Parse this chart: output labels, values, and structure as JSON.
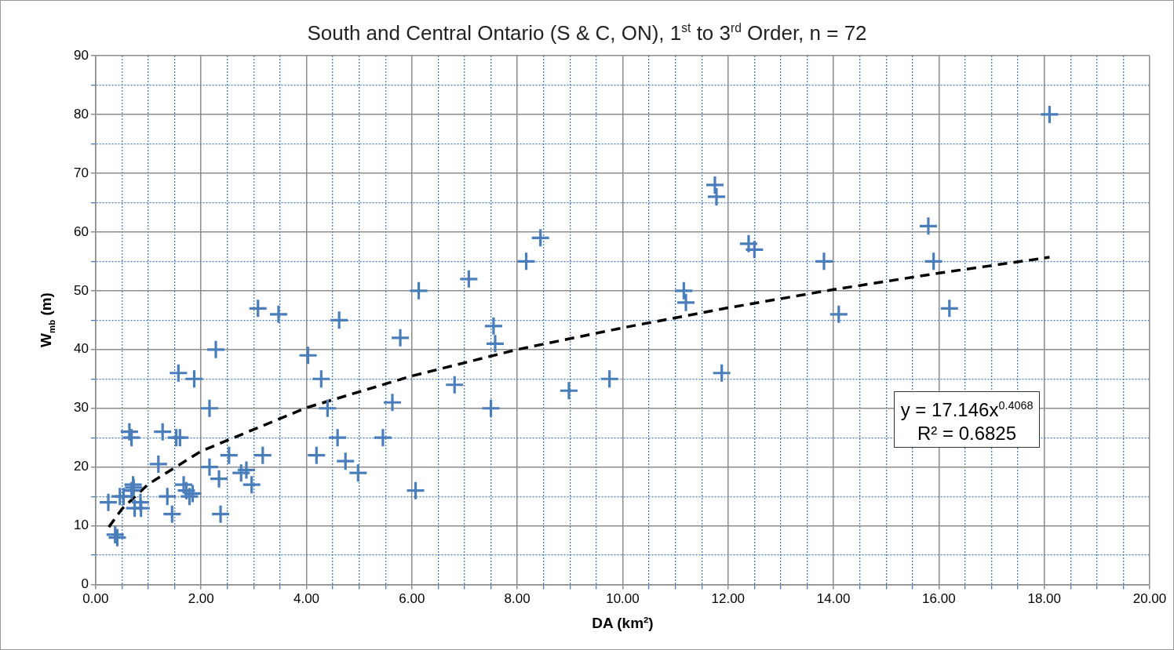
{
  "chart_data": {
    "type": "scatter",
    "title": "South and Central Ontario (S & C, ON), 1$^{st}$ to 3$^{rd}$ Order, n = 72",
    "xlabel": "DA (km²)",
    "ylabel": "W$_{mb}$ (m)",
    "x": [
      0.24,
      0.37,
      0.41,
      0.46,
      0.53,
      0.64,
      0.68,
      0.68,
      0.71,
      0.72,
      0.74,
      0.85,
      0.86,
      1.19,
      1.27,
      1.36,
      1.45,
      1.53,
      1.57,
      1.6,
      1.67,
      1.72,
      1.78,
      1.84,
      1.87,
      2.16,
      2.16,
      2.28,
      2.34,
      2.37,
      2.53,
      2.76,
      2.86,
      2.96,
      3.08,
      3.17,
      3.47,
      4.03,
      4.19,
      4.28,
      4.4,
      4.59,
      4.62,
      4.74,
      4.98,
      5.45,
      5.63,
      5.78,
      6.07,
      6.13,
      6.81,
      7.08,
      7.5,
      7.55,
      7.58,
      8.17,
      8.44,
      8.98,
      9.75,
      11.16,
      11.2,
      11.75,
      11.78,
      11.88,
      12.39,
      12.5,
      13.82,
      14.1,
      15.8,
      15.9,
      16.2,
      18.1
    ],
    "series": [
      {
        "color": "#4a7ebb",
        "values": [
          14,
          8.5,
          8,
          15,
          15,
          26,
          25,
          16,
          17,
          16.5,
          13,
          14,
          13,
          20.5,
          26,
          15,
          12,
          25,
          36,
          25,
          17,
          16,
          15,
          15.5,
          35,
          30,
          20,
          40,
          18,
          12,
          22,
          19,
          19.5,
          17,
          47,
          22,
          46,
          39,
          22,
          35,
          30,
          25,
          45,
          21,
          19,
          25,
          31,
          42,
          16,
          50,
          34,
          52,
          30,
          44,
          41,
          55,
          59,
          33,
          35,
          50,
          48,
          68,
          66,
          36,
          58,
          57,
          55,
          46,
          61,
          55,
          47,
          80
        ]
      },
      {
        "type": "line",
        "color": "#000000",
        "line_style": "dashed",
        "marker": "none",
        "x": [
          0.25,
          0.5,
          1,
          2,
          4,
          6,
          8,
          10,
          12,
          14,
          16,
          18.1
        ],
        "values": [
          9.8,
          12.9,
          17.1,
          22.7,
          30.1,
          35.5,
          40.0,
          43.7,
          47.1,
          50.2,
          53.0,
          55.7
        ]
      }
    ],
    "marker": "cross",
    "annotations": [
      "y = 17.146x$^{0.4068}$",
      "R² = 0.6825"
    ],
    "xlim": [
      0,
      20
    ],
    "ylim": [
      0,
      90
    ],
    "xticks": [
      {
        "value": 0,
        "label": "0.00"
      },
      {
        "value": 0.5,
        "label": null
      },
      {
        "value": 1,
        "label": null
      },
      {
        "value": 1.5,
        "label": null
      },
      {
        "value": 2,
        "label": "2.00"
      },
      {
        "value": 2.5,
        "label": null
      },
      {
        "value": 3,
        "label": null
      },
      {
        "value": 3.5,
        "label": null
      },
      {
        "value": 4,
        "label": "4.00"
      },
      {
        "value": 4.5,
        "label": null
      },
      {
        "value": 5,
        "label": null
      },
      {
        "value": 5.5,
        "label": null
      },
      {
        "value": 6,
        "label": "6.00"
      },
      {
        "value": 6.5,
        "label": null
      },
      {
        "value": 7,
        "label": null
      },
      {
        "value": 7.5,
        "label": null
      },
      {
        "value": 8,
        "label": "8.00"
      },
      {
        "value": 8.5,
        "label": null
      },
      {
        "value": 9,
        "label": null
      },
      {
        "value": 9.5,
        "label": null
      },
      {
        "value": 10,
        "label": "10.00"
      },
      {
        "value": 10.5,
        "label": null
      },
      {
        "value": 11,
        "label": null
      },
      {
        "value": 11.5,
        "label": null
      },
      {
        "value": 12,
        "label": "12.00"
      },
      {
        "value": 12.5,
        "label": null
      },
      {
        "value": 13,
        "label": null
      },
      {
        "value": 13.5,
        "label": null
      },
      {
        "value": 14,
        "label": "14.00"
      },
      {
        "value": 14.5,
        "label": null
      },
      {
        "value": 15,
        "label": null
      },
      {
        "value": 15.5,
        "label": null
      },
      {
        "value": 16,
        "label": "16.00"
      },
      {
        "value": 16.5,
        "label": null
      },
      {
        "value": 17,
        "label": null
      },
      {
        "value": 17.5,
        "label": null
      },
      {
        "value": 18,
        "label": "18.00"
      },
      {
        "value": 18.5,
        "label": null
      },
      {
        "value": 19,
        "label": null
      },
      {
        "value": 19.5,
        "label": null
      },
      {
        "value": 20,
        "label": "20.00"
      }
    ],
    "yticks": [
      0,
      {
        "value": 5,
        "label": null
      },
      10,
      {
        "value": 15,
        "label": null
      },
      20,
      {
        "value": 25,
        "label": null
      },
      30,
      {
        "value": 35,
        "label": null
      },
      40,
      {
        "value": 45,
        "label": null
      },
      50,
      {
        "value": 55,
        "label": null
      },
      60,
      {
        "value": 65,
        "label": null
      },
      70,
      {
        "value": 75,
        "label": null
      },
      80,
      {
        "value": 85,
        "label": null
      },
      90
    ],
    "grid": true,
    "legend": false
  }
}
